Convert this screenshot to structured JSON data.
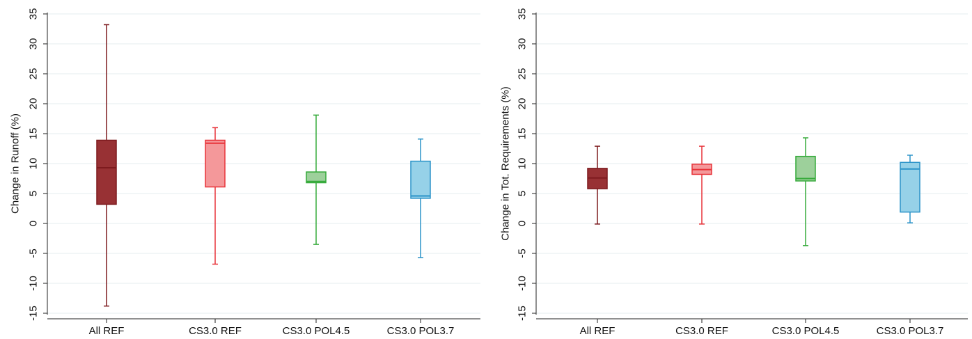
{
  "chart_data": [
    {
      "type": "box",
      "ylabel": "Change in Runoff (%)",
      "ylim": [
        -15,
        35
      ],
      "yticks": [
        -15,
        -10,
        -5,
        0,
        5,
        10,
        15,
        20,
        25,
        30,
        35
      ],
      "grid": true,
      "categories": [
        "All REF",
        "CS3.0 REF",
        "CS3.0 POL4.5",
        "CS3.0 POL3.7"
      ],
      "boxes": [
        {
          "category": "All REF",
          "min": -13.8,
          "q1": 3.2,
          "median": 9.3,
          "q3": 13.9,
          "max": 33.2
        },
        {
          "category": "CS3.0 REF",
          "min": -6.8,
          "q1": 6.1,
          "median": 13.4,
          "q3": 13.9,
          "max": 16.0
        },
        {
          "category": "CS3.0 POL4.5",
          "min": -3.5,
          "q1": 6.8,
          "median": 7.0,
          "q3": 8.6,
          "max": 18.1
        },
        {
          "category": "CS3.0 POL3.7",
          "min": -5.7,
          "q1": 4.2,
          "median": 4.6,
          "q3": 10.4,
          "max": 14.1
        }
      ]
    },
    {
      "type": "box",
      "ylabel": "Change in Tot. Requirements (%)",
      "ylim": [
        -15,
        35
      ],
      "yticks": [
        -15,
        -10,
        -5,
        0,
        5,
        10,
        15,
        20,
        25,
        30,
        35
      ],
      "grid": true,
      "categories": [
        "All REF",
        "CS3.0 REF",
        "CS3.0 POL4.5",
        "CS3.0 POL3.7"
      ],
      "boxes": [
        {
          "category": "All REF",
          "min": -0.1,
          "q1": 5.8,
          "median": 7.6,
          "q3": 9.2,
          "max": 12.9
        },
        {
          "category": "CS3.0 REF",
          "min": -0.1,
          "q1": 8.2,
          "median": 9.0,
          "q3": 9.9,
          "max": 12.9
        },
        {
          "category": "CS3.0 POL4.5",
          "min": -3.7,
          "q1": 7.1,
          "median": 7.5,
          "q3": 11.2,
          "max": 14.3
        },
        {
          "category": "CS3.0 POL3.7",
          "min": 0.1,
          "q1": 1.9,
          "median": 9.1,
          "q3": 10.2,
          "max": 11.4
        }
      ]
    }
  ],
  "colors": {
    "series": [
      {
        "fill": "#983134",
        "stroke": "#7d1a1e"
      },
      {
        "fill": "#f4989a",
        "stroke": "#e8343a"
      },
      {
        "fill": "#9dd09b",
        "stroke": "#35aa3a"
      },
      {
        "fill": "#96d1e8",
        "stroke": "#2b93c8"
      }
    ],
    "grid": "#e6ecef",
    "axis": "#222222"
  }
}
